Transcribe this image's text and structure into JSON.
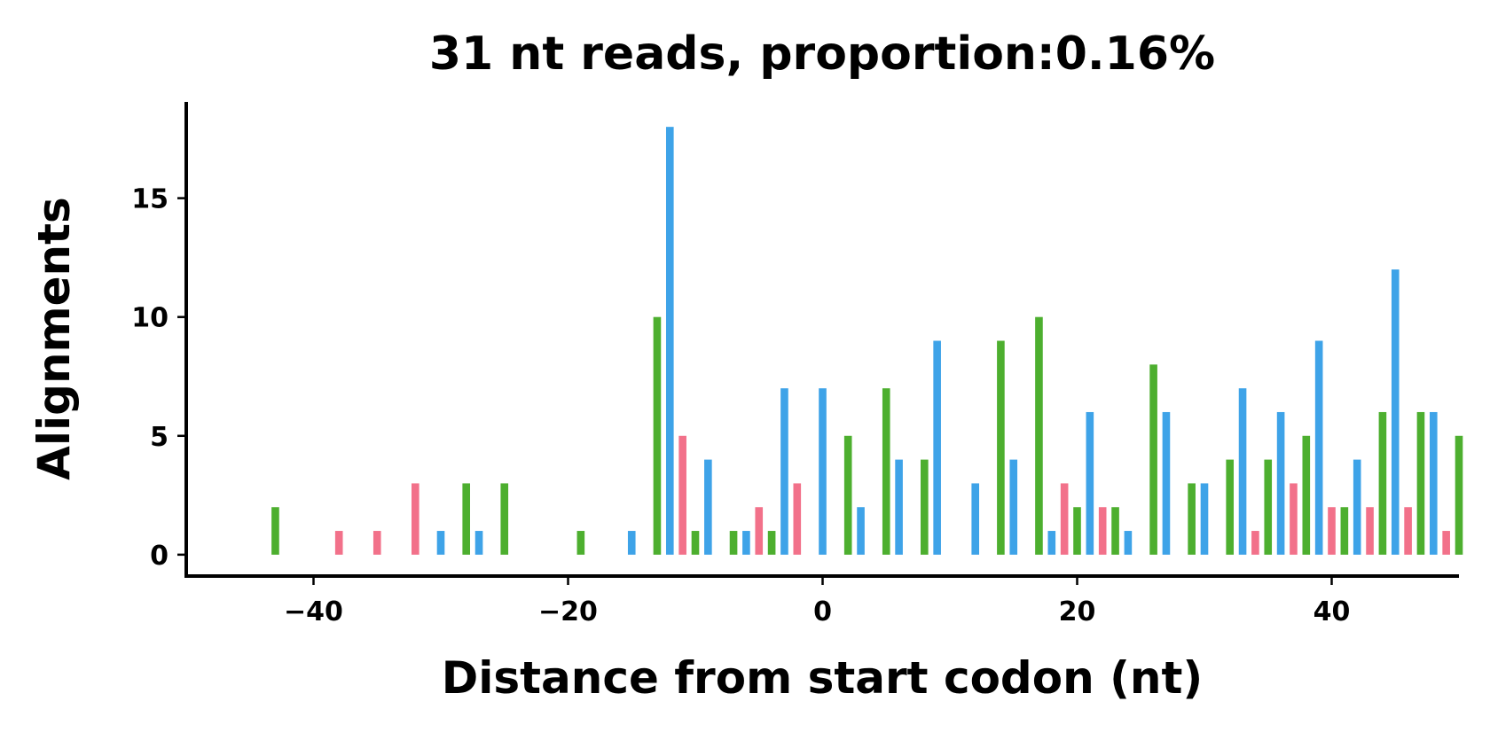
{
  "chart_data": {
    "type": "bar",
    "title": "31 nt reads, proportion:0.16%",
    "x_label": "Distance from start codon (nt)",
    "y_label": "Alignments",
    "series": [
      {
        "color": "#4daf2f",
        "x": [
          -43,
          -28,
          -25,
          -19,
          -13,
          -10,
          -7,
          -4,
          2,
          5,
          8,
          14,
          17,
          20,
          23,
          26,
          29,
          32,
          35,
          38,
          41,
          44,
          47,
          50
        ],
        "values": [
          2,
          3,
          3,
          1,
          10,
          1,
          1,
          1,
          5,
          7,
          4,
          9,
          10,
          2,
          2,
          8,
          3,
          4,
          4,
          5,
          2,
          6,
          6,
          5
        ]
      },
      {
        "color": "#3ea3e8",
        "x": [
          -30,
          -27,
          -15,
          -12,
          -9,
          -6,
          -3,
          0,
          3,
          6,
          9,
          12,
          15,
          18,
          21,
          24,
          27,
          30,
          33,
          36,
          39,
          42,
          45,
          48
        ],
        "values": [
          1,
          1,
          1,
          18,
          4,
          1,
          7,
          7,
          2,
          4,
          9,
          3,
          4,
          1,
          6,
          1,
          6,
          3,
          7,
          6,
          9,
          4,
          12,
          6
        ]
      },
      {
        "color": "#f2718a",
        "x": [
          -38,
          -35,
          -32,
          -11,
          -5,
          -2,
          19,
          22,
          34,
          37,
          40,
          43,
          46,
          49
        ],
        "values": [
          1,
          1,
          3,
          5,
          2,
          3,
          3,
          2,
          1,
          3,
          2,
          2,
          2,
          1
        ]
      }
    ],
    "xlim": [
      -50,
      50
    ],
    "ylim": [
      -0.9,
      19.05
    ],
    "xticks": [
      {
        "value": -40,
        "label": "−40"
      },
      {
        "value": -20,
        "label": "−20"
      },
      0,
      20,
      40
    ],
    "yticks": [
      0,
      5,
      10,
      15
    ],
    "bar_width": 0.6
  }
}
